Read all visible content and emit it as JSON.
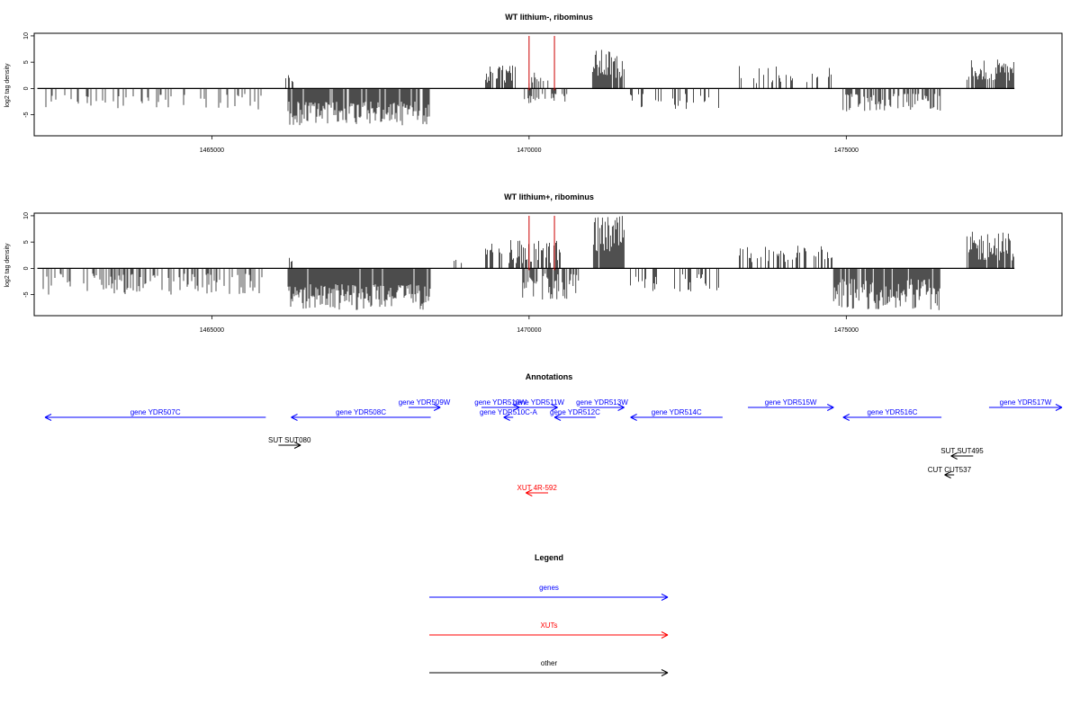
{
  "colors": {
    "gene": "#0000ff",
    "xut": "#ff0000",
    "other": "#000000",
    "bars": "#000000",
    "marker": "#cc0000"
  },
  "chart_data": [
    {
      "type": "bar",
      "title": "WT lithium-, ribominus",
      "ylabel": "log2 tag density",
      "xlim": [
        1462200,
        1478400
      ],
      "ylim": [
        -9,
        10.5
      ],
      "xticks": [
        1465000,
        1470000,
        1475000
      ],
      "yticks": [
        -5,
        0,
        5,
        10
      ],
      "data_range": [
        1462250,
        1477650
      ],
      "markers": [
        1470000,
        1470400
      ],
      "regions": [
        {
          "start": 1462300,
          "end": 1465800,
          "sign": -1,
          "min": 1,
          "max": 4,
          "density": 0.25
        },
        {
          "start": 1466150,
          "end": 1466280,
          "sign": 1,
          "min": 1,
          "max": 3.5,
          "density": 0.6
        },
        {
          "start": 1466200,
          "end": 1468450,
          "sign": -1,
          "min": 2.5,
          "max": 7,
          "density": 0.9
        },
        {
          "start": 1468750,
          "end": 1469000,
          "sign": 1,
          "min": 1,
          "max": 2.5,
          "density": 0.1
        },
        {
          "start": 1469300,
          "end": 1469800,
          "sign": 1,
          "min": 1,
          "max": 4.5,
          "density": 0.6
        },
        {
          "start": 1469900,
          "end": 1470300,
          "sign": 1,
          "min": 1,
          "max": 3.5,
          "density": 0.3
        },
        {
          "start": 1469900,
          "end": 1470600,
          "sign": -1,
          "min": 1,
          "max": 3,
          "density": 0.3
        },
        {
          "start": 1471000,
          "end": 1471500,
          "sign": 1,
          "min": 2,
          "max": 7.5,
          "density": 0.9
        },
        {
          "start": 1471600,
          "end": 1473000,
          "sign": -1,
          "min": 1,
          "max": 4,
          "density": 0.25
        },
        {
          "start": 1473300,
          "end": 1474800,
          "sign": 1,
          "min": 1,
          "max": 4.5,
          "density": 0.25
        },
        {
          "start": 1474950,
          "end": 1476500,
          "sign": -1,
          "min": 1,
          "max": 4.5,
          "density": 0.55
        },
        {
          "start": 1476900,
          "end": 1477650,
          "sign": 1,
          "min": 1.5,
          "max": 5.5,
          "density": 0.8
        }
      ]
    },
    {
      "type": "bar",
      "title": "WT lithium+, ribominus",
      "ylabel": "log2 tag density",
      "xlim": [
        1462200,
        1478400
      ],
      "ylim": [
        -9,
        10.5
      ],
      "xticks": [
        1465000,
        1470000,
        1475000
      ],
      "yticks": [
        -5,
        0,
        5,
        10
      ],
      "data_range": [
        1462250,
        1477650
      ],
      "markers": [
        1470000,
        1470400
      ],
      "regions": [
        {
          "start": 1462300,
          "end": 1465800,
          "sign": -1,
          "min": 1,
          "max": 5,
          "density": 0.35
        },
        {
          "start": 1466150,
          "end": 1466280,
          "sign": 1,
          "min": 1,
          "max": 2,
          "density": 0.5
        },
        {
          "start": 1466200,
          "end": 1468450,
          "sign": -1,
          "min": 3,
          "max": 8,
          "density": 0.95
        },
        {
          "start": 1468750,
          "end": 1469000,
          "sign": 1,
          "min": 1,
          "max": 2.5,
          "density": 0.1
        },
        {
          "start": 1469300,
          "end": 1470500,
          "sign": 1,
          "min": 1,
          "max": 5.5,
          "density": 0.6
        },
        {
          "start": 1469900,
          "end": 1470800,
          "sign": -1,
          "min": 1,
          "max": 6,
          "density": 0.7
        },
        {
          "start": 1471000,
          "end": 1471500,
          "sign": 1,
          "min": 3,
          "max": 10,
          "density": 0.95
        },
        {
          "start": 1471600,
          "end": 1473000,
          "sign": -1,
          "min": 1,
          "max": 4.5,
          "density": 0.3
        },
        {
          "start": 1473300,
          "end": 1474800,
          "sign": 1,
          "min": 1,
          "max": 4.5,
          "density": 0.4
        },
        {
          "start": 1474800,
          "end": 1476500,
          "sign": -1,
          "min": 2,
          "max": 8,
          "density": 0.9
        },
        {
          "start": 1476900,
          "end": 1477650,
          "sign": 1,
          "min": 1.5,
          "max": 7,
          "density": 0.9
        }
      ]
    }
  ],
  "annotations": {
    "title": "Annotations",
    "features": [
      {
        "label": "gene YDR507C",
        "start": 1462250,
        "end": 1465850,
        "strand": "-",
        "type": "gene",
        "row": 1
      },
      {
        "label": "gene YDR508C",
        "start": 1466250,
        "end": 1468450,
        "strand": "-",
        "type": "gene",
        "row": 1
      },
      {
        "label": "gene YDR509W",
        "start": 1468100,
        "end": 1468600,
        "strand": "+",
        "type": "gene",
        "row": 0
      },
      {
        "label": "gene YDR510W",
        "start": 1469250,
        "end": 1469850,
        "strand": "+",
        "type": "gene",
        "row": 0
      },
      {
        "label": "gene YDR511W",
        "start": 1469850,
        "end": 1470450,
        "strand": "+",
        "type": "gene",
        "row": 0
      },
      {
        "label": "gene YDR510C-A",
        "start": 1469600,
        "end": 1469750,
        "strand": "-",
        "type": "gene",
        "row": 1
      },
      {
        "label": "gene YDR512C",
        "start": 1470400,
        "end": 1471050,
        "strand": "-",
        "type": "gene",
        "row": 1
      },
      {
        "label": "gene YDR513W",
        "start": 1470800,
        "end": 1471500,
        "strand": "+",
        "type": "gene",
        "row": 0
      },
      {
        "label": "gene YDR514C",
        "start": 1471600,
        "end": 1473050,
        "strand": "-",
        "type": "gene",
        "row": 1
      },
      {
        "label": "gene YDR515W",
        "start": 1473450,
        "end": 1474800,
        "strand": "+",
        "type": "gene",
        "row": 0
      },
      {
        "label": "gene YDR516C",
        "start": 1474950,
        "end": 1476500,
        "strand": "-",
        "type": "gene",
        "row": 1
      },
      {
        "label": "gene YDR517W",
        "start": 1477250,
        "end": 1478400,
        "strand": "+",
        "type": "gene",
        "row": 0
      },
      {
        "label": "SUT SUT080",
        "start": 1466050,
        "end": 1466400,
        "strand": "+",
        "type": "other",
        "row": 2
      },
      {
        "label": "SUT SUT495",
        "start": 1476650,
        "end": 1477000,
        "strand": "-",
        "type": "other",
        "row": 3
      },
      {
        "label": "CUT CUT537",
        "start": 1476550,
        "end": 1476700,
        "strand": "-",
        "type": "other",
        "row": 4
      },
      {
        "label": "XUT 4R-592",
        "start": 1469950,
        "end": 1470300,
        "strand": "-",
        "type": "xut",
        "row": 5
      }
    ]
  },
  "legend": {
    "title": "Legend",
    "items": [
      {
        "label": "genes",
        "type": "gene"
      },
      {
        "label": "XUTs",
        "type": "xut"
      },
      {
        "label": "other",
        "type": "other"
      }
    ]
  }
}
